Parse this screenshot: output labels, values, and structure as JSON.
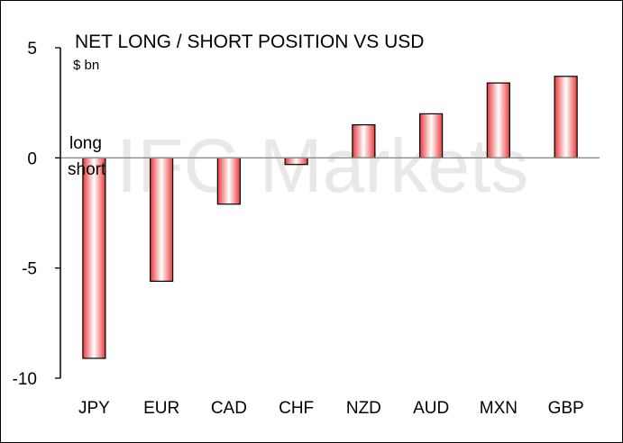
{
  "chart_data": {
    "type": "bar",
    "title": "NET LONG / SHORT POSITION VS USD",
    "unit_label": "$ bn",
    "categories": [
      "JPY",
      "EUR",
      "CAD",
      "CHF",
      "NZD",
      "AUD",
      "MXN",
      "GBP"
    ],
    "values": [
      -9.1,
      -5.6,
      -2.1,
      -0.3,
      1.5,
      2.0,
      3.4,
      3.7
    ],
    "ylim": [
      -10,
      5
    ],
    "yticks": [
      5,
      0,
      -5,
      -10
    ],
    "ytick_labels": [
      "5",
      "0",
      "-5",
      "-10"
    ],
    "xlabel": "",
    "ylabel": "",
    "grid": false,
    "legend": null,
    "annotations": {
      "long_label": "long",
      "short_label": "short"
    },
    "watermark": "IFC Markets",
    "colors": {
      "bar_edge": "#000000",
      "bar_center": "#ffffff",
      "bar_side": "#e83a3a",
      "zero_line": "#8c8c8c",
      "axis": "#000000"
    }
  }
}
